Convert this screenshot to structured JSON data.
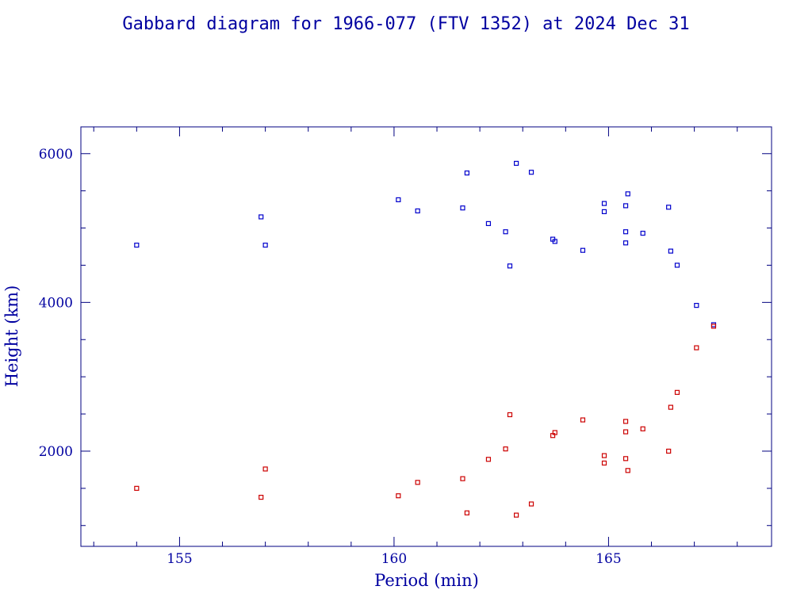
{
  "chart_data": {
    "type": "scatter",
    "title": "Gabbard diagram for 1966-077 (FTV 1352) at 2024 Dec 31",
    "xlabel": "Period (min)",
    "ylabel": "Height (km)",
    "xlim": [
      152.7,
      168.8
    ],
    "ylim": [
      720,
      6360
    ],
    "x_ticks": [
      155,
      160,
      165
    ],
    "y_ticks": [
      2000,
      4000,
      6000
    ],
    "grid": false,
    "colors": {
      "text": "#0000a0",
      "apogee": "#0000cc",
      "perigee": "#cc0000",
      "axes": "#000080"
    },
    "series": [
      {
        "role": "apogee",
        "color": "#0000cc",
        "points": [
          [
            154.0,
            4770
          ],
          [
            156.9,
            5150
          ],
          [
            157.0,
            4770
          ],
          [
            160.1,
            5380
          ],
          [
            160.55,
            5230
          ],
          [
            161.6,
            5270
          ],
          [
            161.7,
            5740
          ],
          [
            162.2,
            5060
          ],
          [
            162.6,
            4950
          ],
          [
            162.7,
            4490
          ],
          [
            162.85,
            5870
          ],
          [
            163.2,
            5750
          ],
          [
            163.7,
            4850
          ],
          [
            163.75,
            4820
          ],
          [
            164.4,
            4700
          ],
          [
            164.9,
            5330
          ],
          [
            164.9,
            5220
          ],
          [
            165.4,
            5300
          ],
          [
            165.4,
            4950
          ],
          [
            165.45,
            5460
          ],
          [
            165.4,
            4800
          ],
          [
            165.8,
            4930
          ],
          [
            166.4,
            5280
          ],
          [
            166.45,
            4690
          ],
          [
            166.6,
            4500
          ],
          [
            167.05,
            3960
          ],
          [
            167.45,
            3700
          ]
        ]
      },
      {
        "role": "perigee",
        "color": "#cc0000",
        "points": [
          [
            154.0,
            1500
          ],
          [
            156.9,
            1380
          ],
          [
            157.0,
            1760
          ],
          [
            160.1,
            1400
          ],
          [
            160.55,
            1580
          ],
          [
            161.6,
            1630
          ],
          [
            161.7,
            1170
          ],
          [
            162.2,
            1890
          ],
          [
            162.6,
            2030
          ],
          [
            162.7,
            2490
          ],
          [
            162.85,
            1140
          ],
          [
            163.2,
            1290
          ],
          [
            163.7,
            2210
          ],
          [
            163.75,
            2250
          ],
          [
            164.4,
            2420
          ],
          [
            164.9,
            1940
          ],
          [
            164.9,
            1840
          ],
          [
            165.4,
            2260
          ],
          [
            165.4,
            1900
          ],
          [
            165.45,
            1740
          ],
          [
            165.4,
            2400
          ],
          [
            165.8,
            2300
          ],
          [
            166.4,
            2000
          ],
          [
            166.45,
            2590
          ],
          [
            166.6,
            2790
          ],
          [
            167.05,
            3390
          ],
          [
            167.45,
            3680
          ]
        ]
      }
    ]
  }
}
